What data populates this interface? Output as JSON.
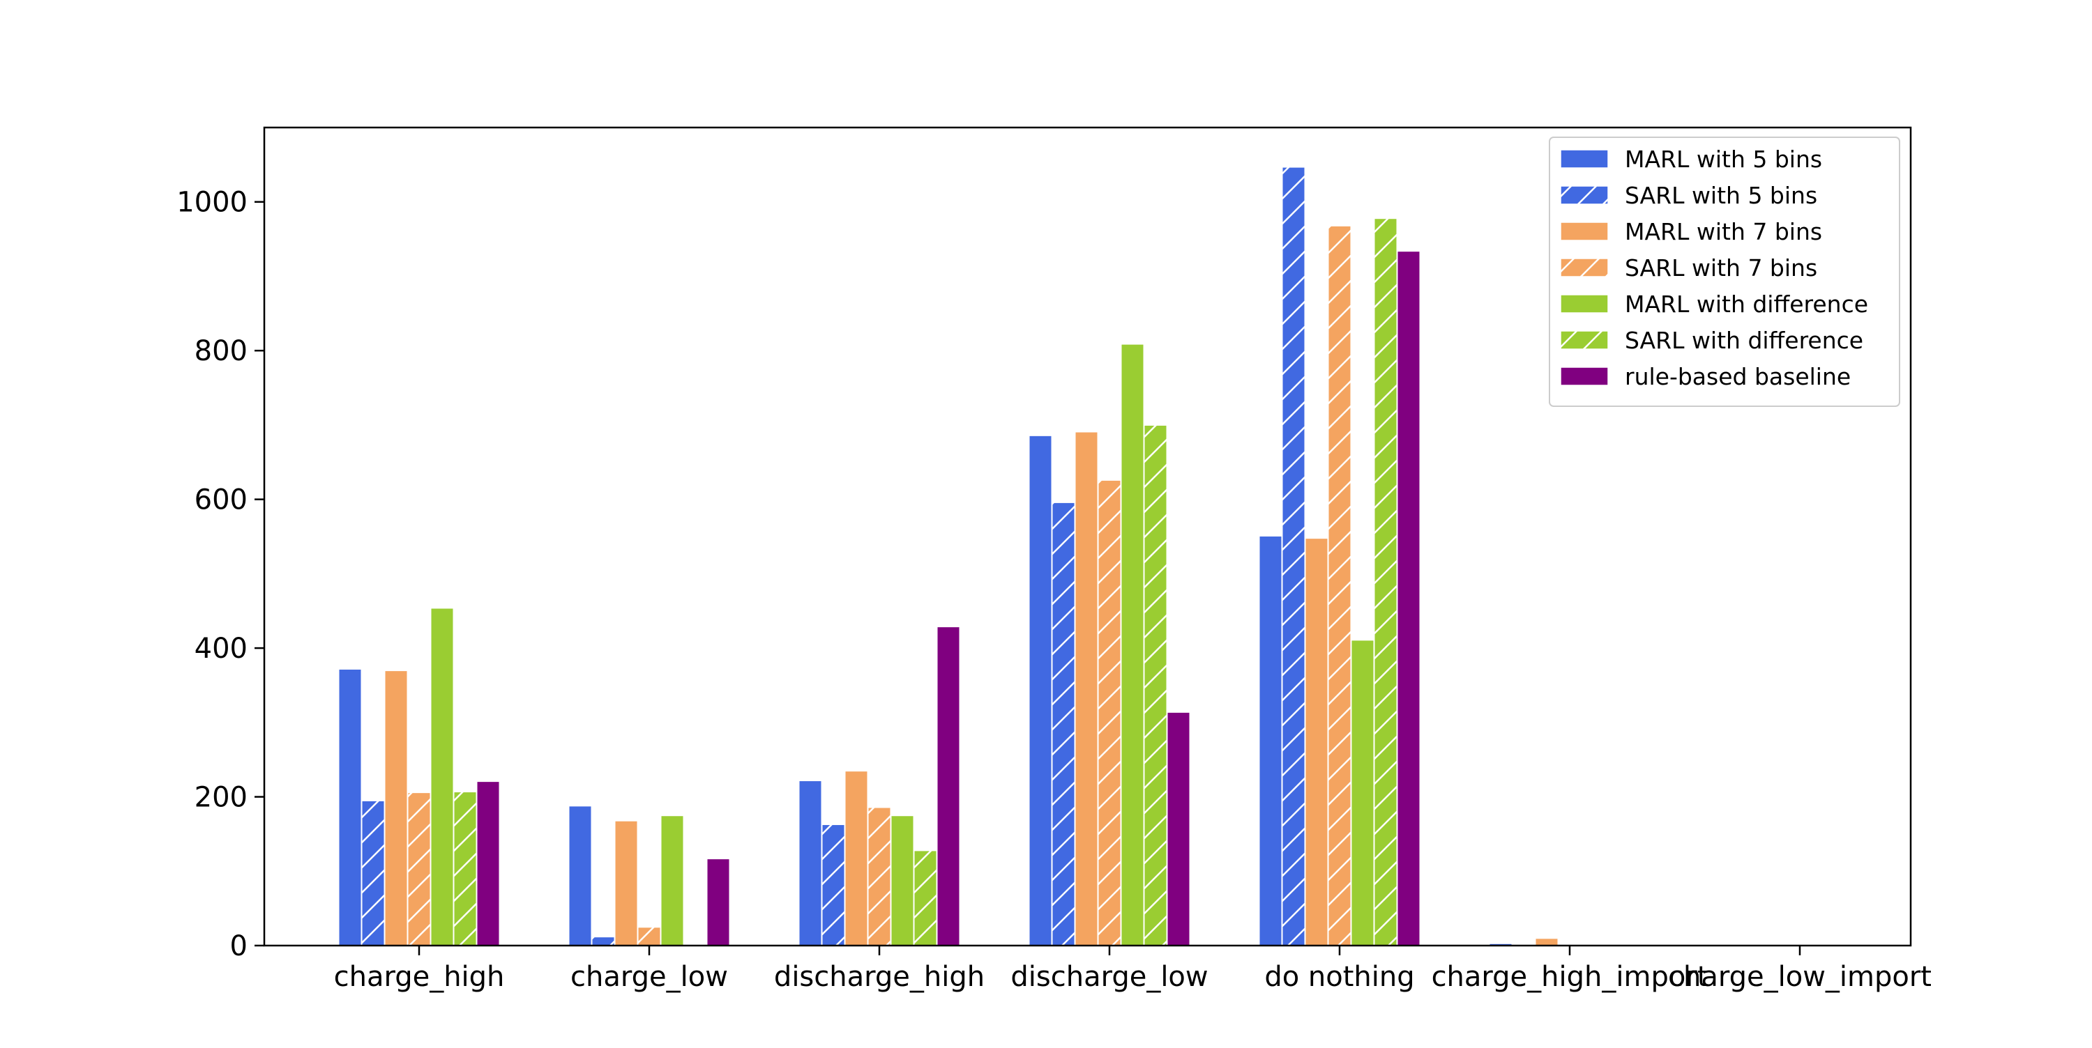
{
  "chart_data": {
    "type": "bar",
    "title": "",
    "xlabel": "",
    "ylabel": "",
    "categories": [
      "charge_high",
      "charge_low",
      "discharge_high",
      "discharge_low",
      "do nothing",
      "charge_high_import",
      "charge_low_import"
    ],
    "ylim": [
      0,
      1100
    ],
    "yticks": [
      0,
      200,
      400,
      600,
      800,
      1000
    ],
    "grid": false,
    "legend_position": "top-right",
    "series": [
      {
        "name": "MARL with 5 bins",
        "color": "#4169e1",
        "hatch": false,
        "values": [
          372,
          188,
          222,
          686,
          551,
          3,
          0
        ]
      },
      {
        "name": "SARL with 5 bins",
        "color": "#4169e1",
        "hatch": true,
        "values": [
          195,
          12,
          163,
          596,
          1047,
          0,
          0
        ]
      },
      {
        "name": "MARL with 7 bins",
        "color": "#f4a460",
        "hatch": false,
        "values": [
          370,
          168,
          235,
          691,
          548,
          10,
          1
        ]
      },
      {
        "name": "SARL with 7 bins",
        "color": "#f4a460",
        "hatch": true,
        "values": [
          206,
          25,
          186,
          626,
          968,
          0,
          0
        ]
      },
      {
        "name": "MARL with difference",
        "color": "#9acd32",
        "hatch": false,
        "values": [
          454,
          175,
          175,
          809,
          411,
          0,
          0
        ]
      },
      {
        "name": "SARL with difference",
        "color": "#9acd32",
        "hatch": true,
        "values": [
          207,
          0,
          128,
          700,
          978,
          0,
          0
        ]
      },
      {
        "name": "rule-based baseline",
        "color": "#800080",
        "hatch": false,
        "values": [
          221,
          117,
          429,
          314,
          934,
          0,
          0
        ]
      }
    ]
  }
}
